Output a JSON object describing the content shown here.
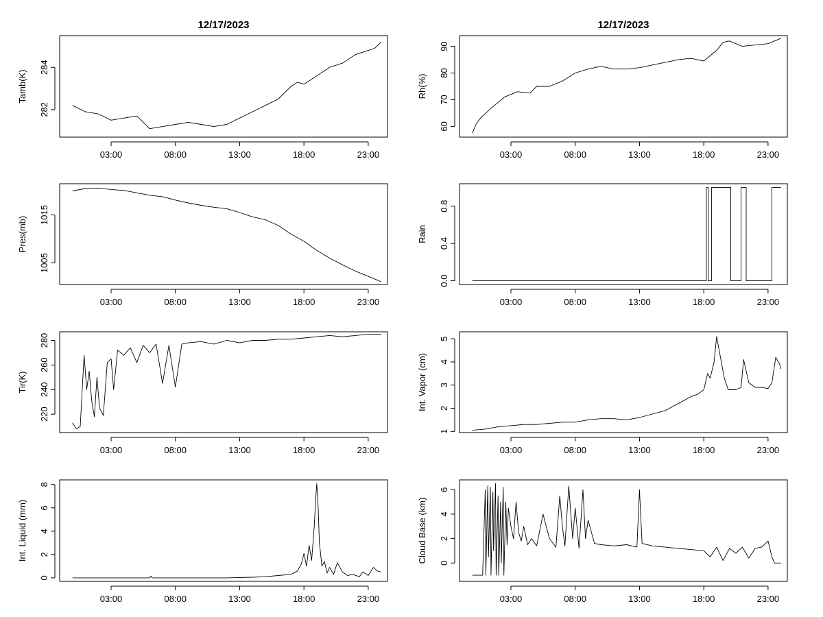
{
  "chart_data": [
    {
      "type": "line",
      "title": "12/17/2023",
      "ylabel": "Tamb(K)",
      "xticks": [
        "03:00",
        "08:00",
        "13:00",
        "18:00",
        "23:00"
      ],
      "xlim_hours": [
        -1.0,
        24.5
      ],
      "ylim": [
        280.7,
        285.5
      ],
      "yticks": [
        282,
        284
      ],
      "x_hours": [
        0.0,
        1.0,
        2.0,
        3.0,
        4.0,
        5.0,
        6.0,
        7.0,
        8.0,
        9.0,
        10.0,
        11.0,
        12.0,
        13.0,
        14.0,
        15.0,
        16.0,
        17.0,
        17.5,
        18.0,
        19.0,
        20.0,
        21.0,
        22.0,
        23.0,
        23.5,
        24.0
      ],
      "values": [
        282.2,
        281.9,
        281.8,
        281.5,
        281.6,
        281.7,
        281.1,
        281.2,
        281.3,
        281.4,
        281.3,
        281.2,
        281.3,
        281.6,
        281.9,
        282.2,
        282.5,
        283.1,
        283.3,
        283.2,
        283.6,
        284.0,
        284.2,
        284.6,
        284.8,
        284.9,
        285.2
      ]
    },
    {
      "type": "line",
      "title": "12/17/2023",
      "ylabel": "Rh(%)",
      "xticks": [
        "03:00",
        "08:00",
        "13:00",
        "18:00",
        "23:00"
      ],
      "xlim_hours": [
        -1.0,
        24.5
      ],
      "ylim": [
        56.0,
        94.0
      ],
      "yticks": [
        60,
        70,
        80,
        90
      ],
      "x_hours": [
        0.0,
        0.3,
        0.7,
        1.5,
        2.5,
        3.5,
        4.5,
        5.0,
        6.0,
        7.0,
        8.0,
        9.0,
        10.0,
        11.0,
        12.0,
        13.0,
        14.0,
        15.0,
        16.0,
        17.0,
        18.0,
        19.0,
        19.5,
        20.0,
        21.0,
        22.0,
        23.0,
        24.0
      ],
      "values": [
        57.5,
        61.0,
        63.5,
        67.0,
        71.0,
        73.0,
        72.5,
        75.0,
        75.0,
        77.0,
        80.0,
        81.5,
        82.5,
        81.5,
        81.5,
        82.0,
        83.0,
        84.0,
        85.0,
        85.5,
        84.5,
        88.5,
        91.5,
        92.0,
        90.0,
        90.5,
        91.0,
        93.0
      ]
    },
    {
      "type": "line",
      "ylabel": "Pres(mb)",
      "xticks": [
        "03:00",
        "08:00",
        "13:00",
        "18:00",
        "23:00"
      ],
      "xlim_hours": [
        -1.0,
        24.5
      ],
      "ylim": [
        1000.5,
        1021.5
      ],
      "yticks": [
        1005,
        1015
      ],
      "x_hours": [
        0.0,
        1.0,
        2.0,
        3.0,
        4.0,
        5.0,
        6.0,
        7.0,
        8.0,
        9.0,
        10.0,
        11.0,
        12.0,
        13.0,
        14.0,
        15.0,
        16.0,
        17.0,
        18.0,
        19.0,
        20.0,
        21.0,
        22.0,
        23.0,
        24.0
      ],
      "values": [
        1020.0,
        1020.5,
        1020.6,
        1020.3,
        1020.1,
        1019.6,
        1019.1,
        1018.8,
        1018.1,
        1017.5,
        1017.0,
        1016.6,
        1016.3,
        1015.5,
        1014.6,
        1014.0,
        1012.8,
        1011.0,
        1009.5,
        1007.6,
        1006.0,
        1004.6,
        1003.3,
        1002.2,
        1001.1
      ]
    },
    {
      "type": "line",
      "ylabel": "Rain",
      "xticks": [
        "03:00",
        "08:00",
        "13:00",
        "18:00",
        "23:00"
      ],
      "xlim_hours": [
        -1.0,
        24.5
      ],
      "ylim": [
        -0.04,
        1.04
      ],
      "yticks": [
        0.0,
        0.4,
        0.8
      ],
      "x_hours": [
        0.0,
        18.2,
        18.2,
        18.35,
        18.35,
        18.6,
        18.6,
        20.1,
        20.1,
        20.9,
        20.9,
        21.3,
        21.3,
        23.3,
        23.3,
        24.0
      ],
      "values": [
        0,
        0,
        1,
        1,
        0,
        0,
        1,
        1,
        0,
        0,
        1,
        1,
        0,
        0,
        1,
        1
      ]
    },
    {
      "type": "line",
      "ylabel": "Tir(K)",
      "xticks": [
        "03:00",
        "08:00",
        "13:00",
        "18:00",
        "23:00"
      ],
      "xlim_hours": [
        -1.0,
        24.5
      ],
      "ylim": [
        205.0,
        287.0
      ],
      "yticks": [
        220,
        240,
        260,
        280
      ],
      "x_hours": [
        0.0,
        0.3,
        0.6,
        0.9,
        1.1,
        1.3,
        1.5,
        1.7,
        1.9,
        2.1,
        2.4,
        2.7,
        3.0,
        3.2,
        3.5,
        4.0,
        4.5,
        5.0,
        5.5,
        6.0,
        6.5,
        7.0,
        7.5,
        8.0,
        8.5,
        9.0,
        10.0,
        11.0,
        12.0,
        13.0,
        14.0,
        15.0,
        16.0,
        17.0,
        18.0,
        19.0,
        20.0,
        21.0,
        22.0,
        23.0,
        24.0
      ],
      "values": [
        213,
        208,
        210,
        268,
        240,
        255,
        230,
        218,
        250,
        225,
        219,
        262,
        265,
        240,
        272,
        268,
        274,
        262,
        276,
        270,
        277,
        245,
        276,
        242,
        277,
        278,
        279,
        277,
        280,
        278,
        280,
        280,
        281,
        281,
        282,
        283,
        284,
        283,
        284,
        285,
        285
      ]
    },
    {
      "type": "line",
      "ylabel": "Int. Vapor (cm)",
      "xticks": [
        "03:00",
        "08:00",
        "13:00",
        "18:00",
        "23:00"
      ],
      "xlim_hours": [
        -1.0,
        24.5
      ],
      "ylim": [
        0.95,
        5.3
      ],
      "yticks": [
        1,
        2,
        3,
        4,
        5
      ],
      "x_hours": [
        0.0,
        1.0,
        2.0,
        3.0,
        4.0,
        5.0,
        6.0,
        7.0,
        8.0,
        9.0,
        10.0,
        11.0,
        12.0,
        13.0,
        14.0,
        15.0,
        16.0,
        17.0,
        17.5,
        18.0,
        18.3,
        18.5,
        18.8,
        19.0,
        19.3,
        19.6,
        19.9,
        20.5,
        20.9,
        21.1,
        21.5,
        22.0,
        22.5,
        23.0,
        23.3,
        23.6,
        23.9,
        24.0
      ],
      "values": [
        1.05,
        1.1,
        1.2,
        1.25,
        1.3,
        1.3,
        1.35,
        1.4,
        1.4,
        1.5,
        1.55,
        1.55,
        1.5,
        1.6,
        1.75,
        1.9,
        2.2,
        2.5,
        2.6,
        2.8,
        3.5,
        3.3,
        4.0,
        5.1,
        4.2,
        3.3,
        2.8,
        2.8,
        2.9,
        4.1,
        3.1,
        2.9,
        2.9,
        2.85,
        3.1,
        4.2,
        3.9,
        3.7
      ]
    },
    {
      "type": "line",
      "ylabel": "Int. Liquid (mm)",
      "xticks": [
        "03:00",
        "08:00",
        "13:00",
        "18:00",
        "23:00"
      ],
      "xlim_hours": [
        -1.0,
        24.5
      ],
      "ylim": [
        -0.3,
        8.4
      ],
      "yticks": [
        0,
        2,
        4,
        6,
        8
      ],
      "x_hours": [
        0.0,
        6.0,
        6.1,
        6.2,
        12.0,
        14.0,
        15.0,
        16.0,
        17.0,
        17.5,
        17.8,
        18.0,
        18.2,
        18.4,
        18.6,
        18.8,
        18.9,
        19.0,
        19.1,
        19.2,
        19.4,
        19.6,
        19.8,
        20.0,
        20.3,
        20.6,
        21.0,
        21.4,
        21.8,
        22.3,
        22.6,
        23.0,
        23.4,
        23.7,
        24.0
      ],
      "values": [
        0.0,
        0.0,
        0.15,
        0.0,
        0.0,
        0.05,
        0.1,
        0.2,
        0.3,
        0.6,
        1.2,
        2.1,
        1.0,
        2.8,
        1.5,
        4.4,
        6.5,
        8.1,
        6.2,
        3.0,
        1.0,
        1.4,
        0.4,
        0.9,
        0.3,
        1.3,
        0.5,
        0.2,
        0.3,
        0.1,
        0.5,
        0.2,
        0.9,
        0.6,
        0.5
      ]
    },
    {
      "type": "line",
      "ylabel": "Cloud Base (km)",
      "xticks": [
        "03:00",
        "08:00",
        "13:00",
        "18:00",
        "23:00"
      ],
      "xlim_hours": [
        -1.0,
        24.5
      ],
      "ylim": [
        -1.5,
        6.8
      ],
      "yticks": [
        0,
        2,
        4,
        6
      ],
      "x_hours": [
        0.0,
        0.8,
        1.0,
        1.05,
        1.2,
        1.25,
        1.4,
        1.45,
        1.6,
        1.65,
        1.8,
        1.85,
        2.0,
        2.05,
        2.2,
        2.25,
        2.4,
        2.45,
        2.6,
        2.7,
        2.8,
        3.0,
        3.2,
        3.4,
        3.6,
        3.8,
        4.0,
        4.3,
        4.6,
        5.0,
        5.5,
        6.0,
        6.5,
        6.8,
        7.0,
        7.2,
        7.5,
        7.8,
        8.0,
        8.3,
        8.6,
        8.8,
        9.0,
        9.5,
        10.0,
        11.0,
        12.0,
        12.8,
        13.0,
        13.2,
        14.0,
        15.0,
        16.0,
        17.0,
        18.0,
        18.5,
        19.0,
        19.5,
        20.0,
        20.5,
        21.0,
        21.5,
        22.0,
        22.5,
        23.0,
        23.3,
        23.5,
        24.0
      ],
      "values": [
        -1.0,
        -1.0,
        6.0,
        -1.0,
        6.3,
        0.5,
        6.2,
        -1.0,
        5.8,
        1.0,
        6.5,
        -1.0,
        5.5,
        -1.0,
        5.0,
        0.0,
        6.2,
        -1.0,
        5.0,
        1.5,
        4.5,
        3.0,
        2.0,
        5.0,
        2.5,
        1.8,
        3.0,
        1.5,
        2.0,
        1.4,
        4.0,
        2.0,
        1.3,
        5.5,
        3.0,
        1.4,
        6.3,
        2.0,
        4.5,
        1.2,
        6.0,
        2.0,
        3.5,
        1.6,
        1.5,
        1.4,
        1.5,
        1.3,
        6.0,
        1.6,
        1.4,
        1.3,
        1.2,
        1.1,
        1.0,
        0.5,
        1.3,
        0.2,
        1.2,
        0.8,
        1.3,
        0.4,
        1.2,
        1.3,
        1.8,
        0.5,
        0.0,
        0.0
      ]
    }
  ]
}
